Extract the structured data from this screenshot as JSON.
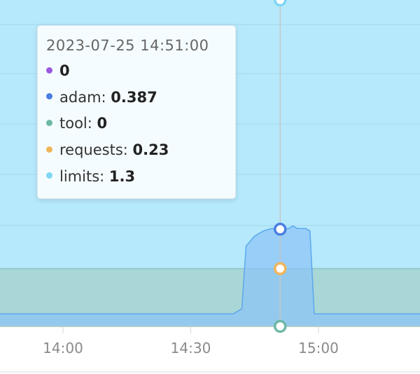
{
  "chart_data": {
    "type": "area",
    "x_ticks": [
      "14:00",
      "14:30",
      "15:00"
    ],
    "x_range": [
      "13:45",
      "15:23"
    ],
    "cursor_time": "14:51",
    "colors": {
      "background": "#b6e9fb",
      "grid": "#a5d8ee",
      "requests_fill": "#a9d6d6",
      "requests_line": "#8ec3c4",
      "adam_fill": "#8ec4f5",
      "adam_line": "#5ba8ee",
      "tool_line": "#78b9b4",
      "axis": "#e2e2e2",
      "crosshair": "#c3c6c8"
    },
    "y_range": [
      0,
      1.3
    ],
    "series": [
      {
        "name": "adam",
        "color": "#4a7fe0",
        "points": [
          [
            "13:45",
            0.05
          ],
          [
            "14:00",
            0.05
          ],
          [
            "14:30",
            0.05
          ],
          [
            "14:40",
            0.05
          ],
          [
            "14:42",
            0.07
          ],
          [
            "14:43",
            0.32
          ],
          [
            "14:45",
            0.36
          ],
          [
            "14:47",
            0.38
          ],
          [
            "14:49",
            0.39
          ],
          [
            "14:51",
            0.387
          ],
          [
            "14:53",
            0.39
          ],
          [
            "14:54",
            0.4
          ],
          [
            "14:55",
            0.39
          ],
          [
            "14:57",
            0.39
          ],
          [
            "14:58",
            0.38
          ],
          [
            "14:59",
            0.05
          ],
          [
            "15:10",
            0.05
          ],
          [
            "15:23",
            0.05
          ]
        ]
      },
      {
        "name": "tool",
        "color": "#6cb8a6",
        "value": 0
      },
      {
        "name": "requests",
        "color": "#f0b55a",
        "value": 0.23
      },
      {
        "name": "limits",
        "color": "#7dd6f7",
        "value": 1.3
      },
      {
        "name": "",
        "color": "#9b59e0",
        "value": 0
      }
    ]
  },
  "tooltip": {
    "title": "2023-07-25 14:51:00",
    "rows": [
      {
        "label": "",
        "value": "0",
        "color": "#9b59e0"
      },
      {
        "label": "adam: ",
        "value": "0.387",
        "color": "#4a7fe0"
      },
      {
        "label": "tool: ",
        "value": "0",
        "color": "#6cb8a6"
      },
      {
        "label": "requests: ",
        "value": "0.23",
        "color": "#f0b55a"
      },
      {
        "label": "limits: ",
        "value": "1.3",
        "color": "#7dd6f7"
      }
    ]
  }
}
